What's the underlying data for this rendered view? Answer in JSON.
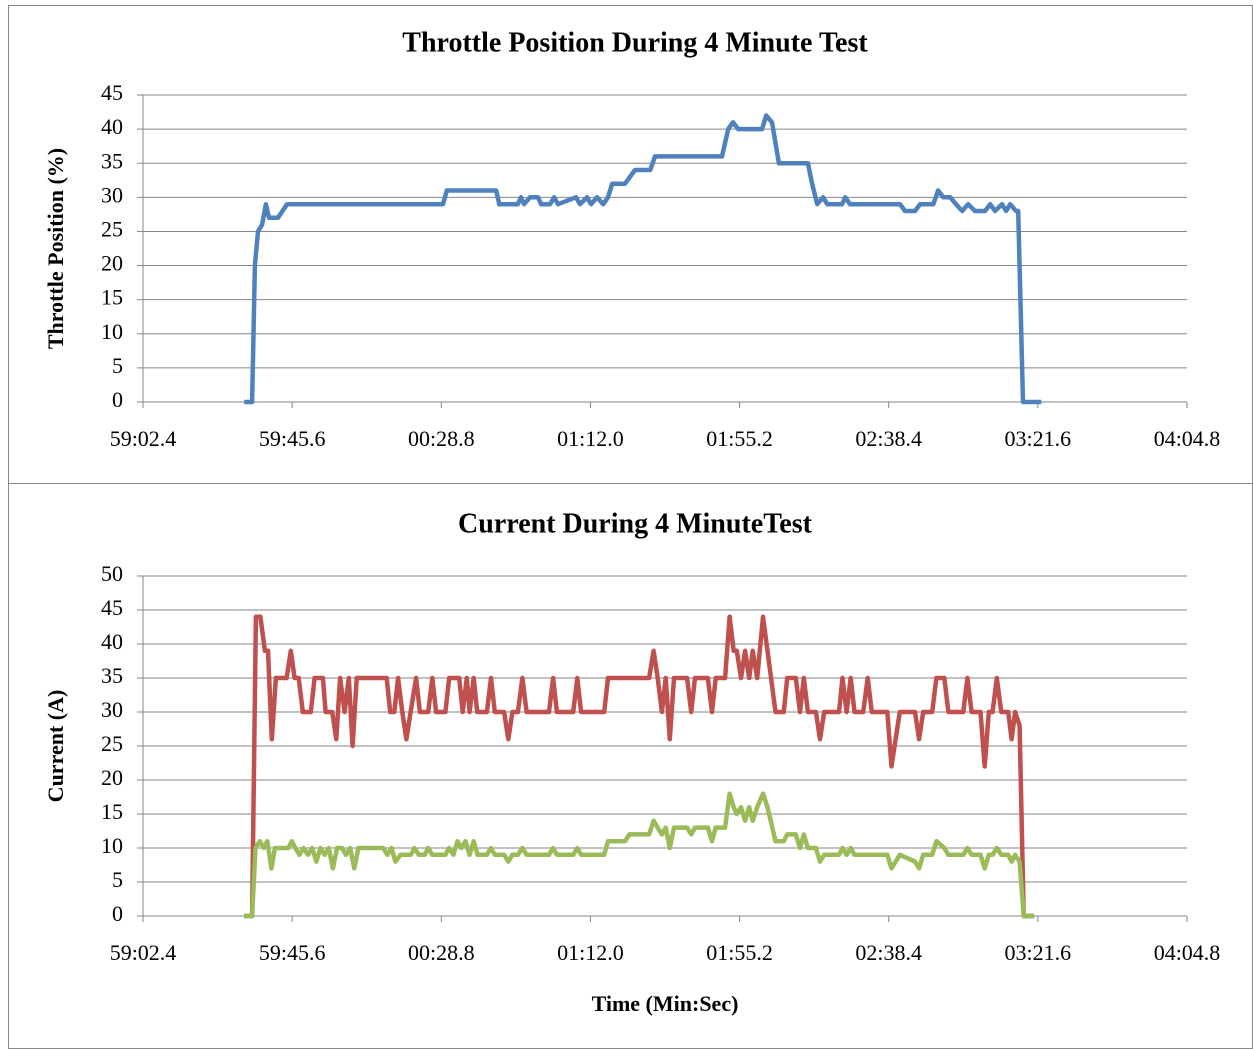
{
  "chart_data": [
    {
      "type": "line",
      "title": "Throttle Position During 4 Minute Test",
      "y_label": "Throttle Position (%)",
      "color": "#4f81bd",
      "x": [
        -28.3,
        -26.0,
        -25.2,
        -24.3,
        -23.1,
        -22.0,
        -21.1,
        -18.5,
        -15.9,
        29.3,
        30.4,
        44.7,
        45.6,
        51.0,
        51.9,
        52.8,
        54.5,
        56.8,
        57.7,
        60.3,
        61.5,
        62.6,
        67.8,
        69.0,
        71.0,
        72.2,
        73.9,
        75.7,
        77.1,
        78.3,
        82.0,
        84.9,
        89.3,
        90.7,
        110.1,
        111.9,
        113.3,
        114.8,
        121.7,
        122.9,
        124.6,
        126.6,
        135.0,
        136.2,
        137.7,
        139.4,
        140.6,
        144.9,
        145.8,
        147.2,
        161.7,
        163.1,
        166.0,
        167.5,
        171.3,
        172.7,
        174.2,
        176.2,
        177.9,
        179.7,
        181.4,
        183.4,
        186.3,
        187.8,
        189.2,
        191.2,
        192.4,
        193.6,
        195.3,
        195.9,
        197.3,
        202.6
      ],
      "values": [
        0,
        0,
        20,
        25,
        26,
        29,
        27,
        27,
        29,
        29,
        31,
        31,
        29,
        29,
        30,
        29,
        30,
        30,
        29,
        29,
        30,
        29,
        30,
        29,
        30,
        29,
        30,
        29,
        30,
        32,
        32,
        34,
        34,
        36,
        36,
        40,
        41,
        40,
        40,
        42,
        41,
        35,
        35,
        32,
        29,
        30,
        29,
        29,
        30,
        29,
        29,
        28,
        28,
        29,
        29,
        31,
        30,
        30,
        29,
        28,
        29,
        28,
        28,
        29,
        28,
        29,
        28,
        29,
        28,
        28,
        0,
        0
      ],
      "xlim": [
        -57.6,
        244.8
      ],
      "xticks": [
        {
          "value": -57.6,
          "label": "59:02.4"
        },
        {
          "value": -14.4,
          "label": "59:45.6"
        },
        {
          "value": 28.8,
          "label": "00:28.8"
        },
        {
          "value": 72,
          "label": "01:12.0"
        },
        {
          "value": 115.2,
          "label": "01:55.2"
        },
        {
          "value": 158.4,
          "label": "02:38.4"
        },
        {
          "value": 201.6,
          "label": "03:21.6"
        },
        {
          "value": 244.8,
          "label": "04:04.8"
        }
      ],
      "ylim": [
        0,
        45
      ],
      "yticks": [
        0,
        5,
        10,
        15,
        20,
        25,
        30,
        35,
        40,
        45
      ],
      "grid": true
    },
    {
      "type": "line",
      "title": "Current During 4 MinuteTest",
      "y_label": "Current (A)",
      "x_label": "Time (Min:Sec)",
      "series": [
        {
          "color": "#c0504d",
          "x": [
            -28.3,
            -26,
            -24.9,
            -23.6,
            -22.3,
            -21.4,
            -20.3,
            -19.1,
            -16.0,
            -14.8,
            -13.7,
            -12.5,
            -11.3,
            -9.0,
            -7.9,
            -5.5,
            -4.7,
            -2.8,
            -1.6,
            -0.5,
            0.8,
            2.0,
            3.1,
            4.3,
            13.0,
            14.0,
            15.2,
            16.3,
            17.5,
            18.7,
            19.9,
            21.5,
            22.6,
            25.0,
            26.2,
            27.3,
            30.0,
            31.1,
            34.0,
            35.0,
            36.2,
            37.0,
            38.2,
            39.2,
            42.0,
            43.2,
            44.3,
            47.0,
            48.2,
            49.4,
            51.0,
            52.3,
            53.5,
            60.0,
            61.2,
            62.3,
            67.0,
            68.2,
            69.3,
            76.0,
            77.1,
            89.0,
            90.3,
            91.5,
            92.7,
            93.8,
            95.0,
            96.2,
            100.0,
            101.2,
            102.3,
            106.0,
            107.2,
            108.3,
            111.0,
            112.3,
            113.5,
            114.4,
            115.6,
            116.8,
            118.0,
            119.0,
            120.3,
            122.0,
            123.3,
            125.6,
            128.0,
            129.0,
            131.5,
            132.7,
            133.8,
            135.0,
            137.3,
            138.5,
            139.7,
            144.0,
            145.0,
            146.2,
            147.4,
            148.5,
            151.0,
            152.3,
            153.5,
            158.0,
            159.2,
            160.4,
            161.6,
            166.0,
            167.2,
            168.4,
            171.0,
            172.2,
            174.5,
            175.7,
            180.0,
            181.2,
            182.4,
            185.0,
            186.2,
            187.4,
            188.5,
            189.7,
            191.0,
            193.0,
            194.0,
            195.0,
            196.3,
            197.5,
            200.5
          ],
          "values": [
            0,
            0,
            44,
            44,
            39,
            39,
            26,
            35,
            35,
            39,
            35,
            35,
            30,
            30,
            35,
            35,
            30,
            30,
            26,
            35,
            30,
            35,
            25,
            35,
            35,
            30,
            30,
            35,
            30,
            26,
            30,
            35,
            30,
            30,
            35,
            30,
            30,
            35,
            35,
            30,
            35,
            30,
            35,
            30,
            30,
            35,
            30,
            30,
            26,
            30,
            30,
            35,
            30,
            30,
            35,
            30,
            30,
            35,
            30,
            30,
            35,
            35,
            39,
            35,
            30,
            35,
            26,
            35,
            35,
            30,
            35,
            35,
            30,
            35,
            35,
            44,
            39,
            39,
            35,
            39,
            35,
            39,
            35,
            44,
            39,
            30,
            30,
            35,
            35,
            30,
            35,
            30,
            30,
            26,
            30,
            30,
            35,
            30,
            35,
            30,
            30,
            35,
            30,
            30,
            22,
            26,
            30,
            30,
            26,
            30,
            30,
            35,
            35,
            30,
            30,
            35,
            30,
            30,
            22,
            30,
            30,
            35,
            30,
            30,
            26,
            30,
            28,
            0,
            0
          ]
        },
        {
          "color": "#9bbb59",
          "x": [
            -28.3,
            -26,
            -25.0,
            -23.8,
            -22.6,
            -21.6,
            -20.4,
            -19.4,
            -15.5,
            -14.5,
            -13.5,
            -12.3,
            -11.1,
            -9.8,
            -8.6,
            -7.4,
            -6.2,
            -5.0,
            -3.8,
            -2.6,
            -1.4,
            0.0,
            1.2,
            2.4,
            3.6,
            4.8,
            12.0,
            13.2,
            14.4,
            15.5,
            17.0,
            20.0,
            21.0,
            22.3,
            24.0,
            25.0,
            26.2,
            30.0,
            31.0,
            32.3,
            33.5,
            34.6,
            35.8,
            37.0,
            38.2,
            39.3,
            42.0,
            43.2,
            44.3,
            47.0,
            48.2,
            49.4,
            51.0,
            52.3,
            53.5,
            60.0,
            61.2,
            62.3,
            67.0,
            68.2,
            69.3,
            76.0,
            77.1,
            82.0,
            83.3,
            89.0,
            90.3,
            91.5,
            92.7,
            93.8,
            95.0,
            96.2,
            100.0,
            101.2,
            102.3,
            106.0,
            107.2,
            108.3,
            111.0,
            112.3,
            113.5,
            114.4,
            115.6,
            116.8,
            118.0,
            119.0,
            120.3,
            122.0,
            123.3,
            125.6,
            128.0,
            129.0,
            131.5,
            132.7,
            133.8,
            135.0,
            137.3,
            138.5,
            139.7,
            144.0,
            145.0,
            146.2,
            147.4,
            148.5,
            151.0,
            152.3,
            158.0,
            159.2,
            160.4,
            161.6,
            166.0,
            167.2,
            168.4,
            171.0,
            172.2,
            174.5,
            175.7,
            180.0,
            181.2,
            182.4,
            185.0,
            186.2,
            187.4,
            188.5,
            189.7,
            191.0,
            193.0,
            194.0,
            195.0,
            196.3,
            197.5,
            200.5
          ],
          "values": [
            0,
            0,
            10,
            11,
            10,
            11,
            7,
            10,
            10,
            11,
            10,
            9,
            10,
            9,
            10,
            8,
            10,
            9,
            10,
            7,
            10,
            10,
            9,
            10,
            7,
            10,
            10,
            9,
            10,
            8,
            9,
            9,
            10,
            9,
            9,
            10,
            9,
            9,
            10,
            9,
            11,
            10,
            11,
            9,
            11,
            9,
            9,
            10,
            9,
            9,
            8,
            9,
            9,
            10,
            9,
            9,
            10,
            9,
            9,
            10,
            9,
            9,
            11,
            11,
            12,
            12,
            14,
            13,
            12,
            13,
            10,
            13,
            13,
            12,
            13,
            13,
            11,
            13,
            13,
            18,
            16,
            15,
            16,
            14,
            16,
            14,
            16,
            18,
            16,
            11,
            11,
            12,
            12,
            10,
            12,
            10,
            10,
            8,
            9,
            9,
            10,
            9,
            10,
            9,
            9,
            9,
            9,
            7,
            8,
            9,
            8,
            7,
            9,
            9,
            11,
            10,
            9,
            9,
            10,
            9,
            9,
            7,
            9,
            9,
            10,
            9,
            9,
            8,
            9,
            8,
            0,
            0
          ]
        }
      ],
      "xlim": [
        -57.6,
        244.8
      ],
      "xticks": [
        {
          "value": -57.6,
          "label": "59:02.4"
        },
        {
          "value": -14.4,
          "label": "59:45.6"
        },
        {
          "value": 28.8,
          "label": "00:28.8"
        },
        {
          "value": 72,
          "label": "01:12.0"
        },
        {
          "value": 115.2,
          "label": "01:55.2"
        },
        {
          "value": 158.4,
          "label": "02:38.4"
        },
        {
          "value": 201.6,
          "label": "03:21.6"
        },
        {
          "value": 244.8,
          "label": "04:04.8"
        }
      ],
      "ylim": [
        0,
        50
      ],
      "yticks": [
        0,
        5,
        10,
        15,
        20,
        25,
        30,
        35,
        40,
        45,
        50
      ],
      "grid": true
    }
  ]
}
